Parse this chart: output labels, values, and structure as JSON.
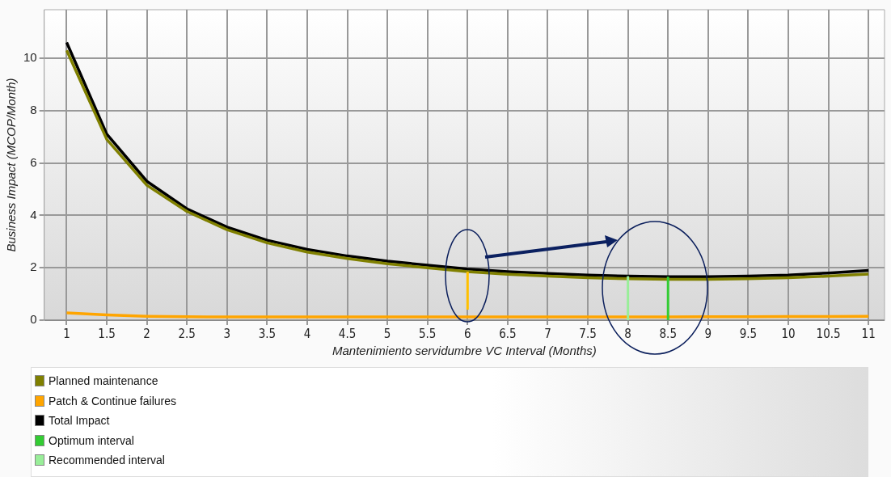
{
  "chart_data": {
    "type": "line",
    "xlabel": "Mantenimiento servidumbre VC Interval (Months)",
    "ylabel": "Business Impact (MCOP/Month)",
    "x": [
      1,
      1.5,
      2,
      2.5,
      3,
      3.5,
      4,
      4.5,
      5,
      5.5,
      6,
      6.5,
      7,
      7.5,
      8,
      8.5,
      9,
      9.5,
      10,
      10.5,
      11
    ],
    "xlim": [
      0.72,
      11.2
    ],
    "xticks": [
      1,
      1.5,
      2,
      2.5,
      3,
      3.5,
      4,
      4.5,
      5,
      5.5,
      6,
      6.5,
      7,
      7.5,
      8,
      8.5,
      9,
      9.5,
      10,
      10.5,
      11
    ],
    "ylim": [
      0,
      11.85
    ],
    "yticks": [
      0,
      2,
      4,
      6,
      8,
      10
    ],
    "grid": true,
    "legend": "bottom left",
    "marker": "none",
    "line_style": "solid",
    "series": [
      {
        "name": "Planned maintenance",
        "color": "#808000",
        "values": [
          10.3,
          6.9,
          5.15,
          4.15,
          3.45,
          2.95,
          2.6,
          2.35,
          2.15,
          2.0,
          1.85,
          1.75,
          1.68,
          1.62,
          1.58,
          1.56,
          1.56,
          1.58,
          1.62,
          1.68,
          1.76
        ]
      },
      {
        "name": "Patch & Continue failures",
        "color": "#ffa500",
        "values": [
          0.28,
          0.2,
          0.15,
          0.13,
          0.12,
          0.12,
          0.12,
          0.12,
          0.12,
          0.12,
          0.12,
          0.12,
          0.12,
          0.12,
          0.12,
          0.12,
          0.13,
          0.13,
          0.14,
          0.14,
          0.15
        ]
      },
      {
        "name": "Total Impact",
        "color": "#000000",
        "values": [
          10.6,
          7.1,
          5.3,
          4.25,
          3.55,
          3.05,
          2.7,
          2.45,
          2.25,
          2.1,
          1.95,
          1.85,
          1.78,
          1.72,
          1.68,
          1.66,
          1.66,
          1.68,
          1.72,
          1.8,
          1.9
        ]
      },
      {
        "name": "Optimum interval",
        "color": "#33cc33",
        "x": [
          8.5,
          8.5
        ],
        "values": [
          0,
          1.66
        ]
      },
      {
        "name": "Recommended interval",
        "color": "#99ee99",
        "x": [
          8,
          8
        ],
        "values": [
          0,
          1.68
        ]
      },
      {
        "color": "#ffc000",
        "x": [
          6,
          6
        ],
        "values": [
          0.4,
          1.85
        ]
      }
    ]
  }
}
